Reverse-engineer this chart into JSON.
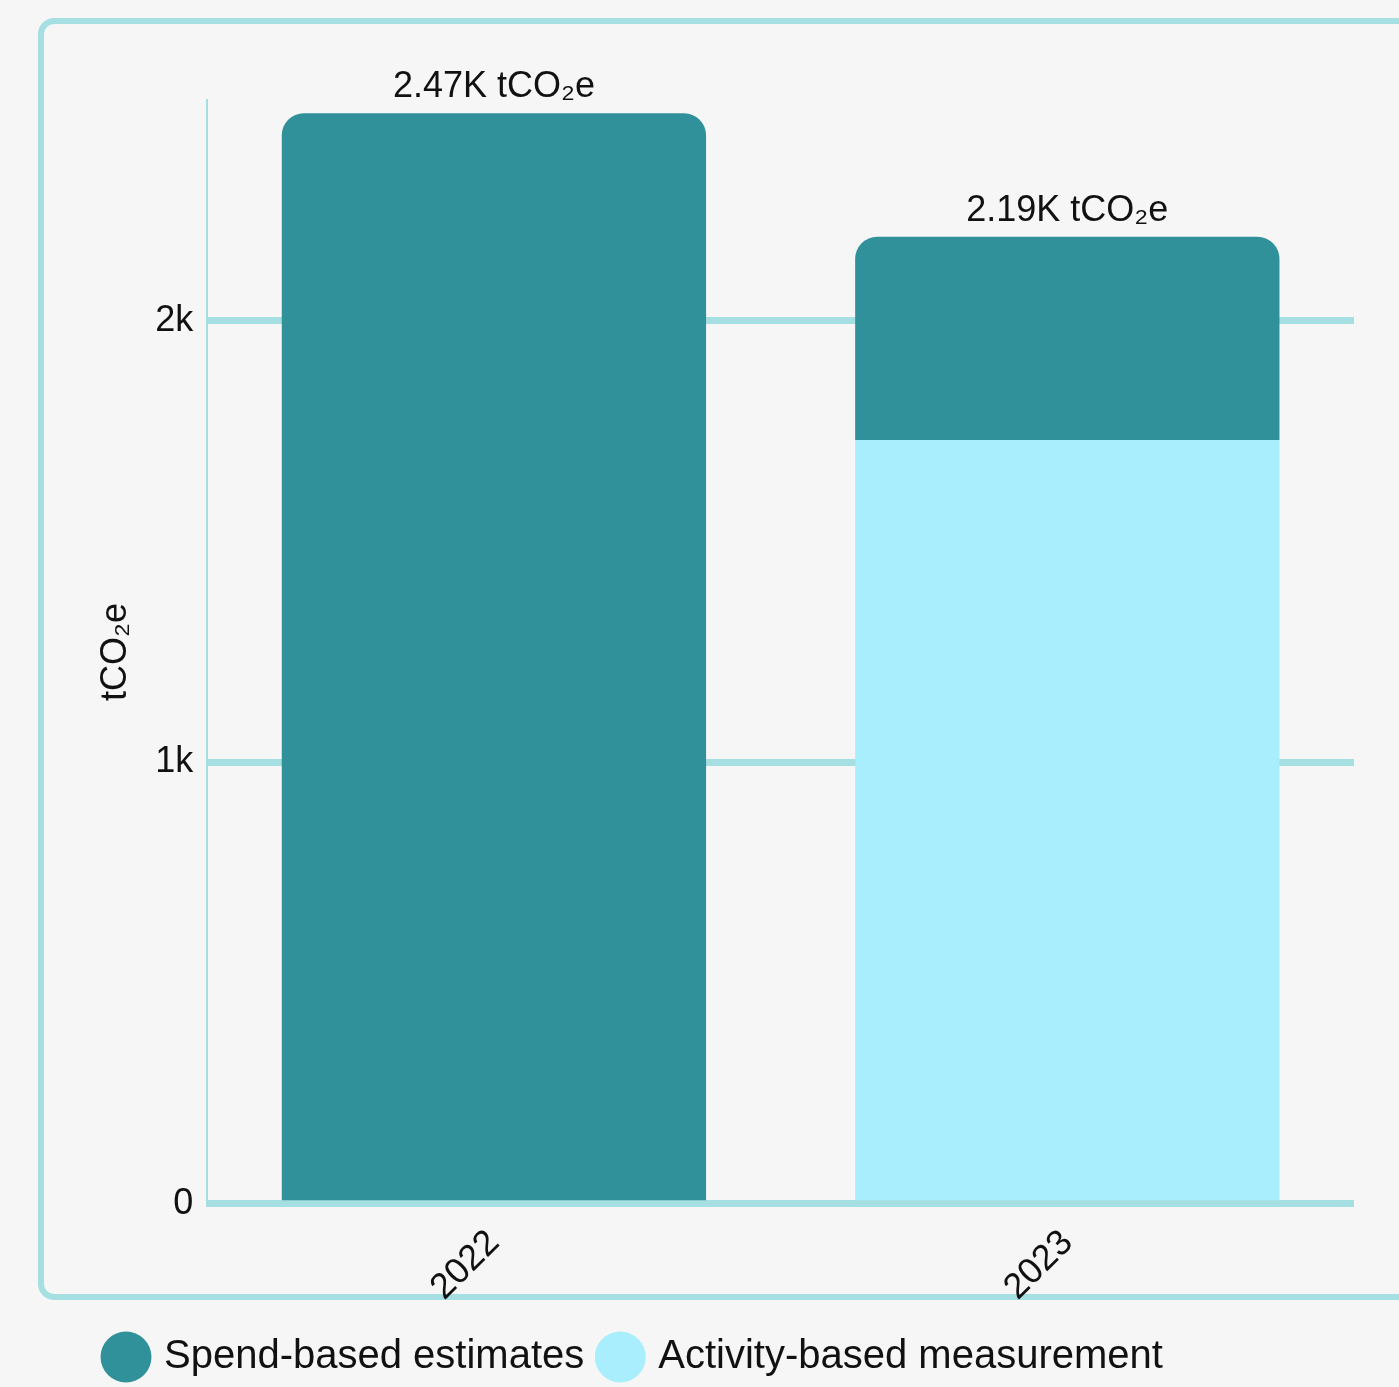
{
  "chart_data": {
    "type": "bar",
    "stacked": true,
    "ylabel": "tCO₂e",
    "categories": [
      "2022",
      "2023"
    ],
    "series": [
      {
        "name": "Activity-based measurement",
        "color": "#a8eefc",
        "values": [
          0,
          1730
        ]
      },
      {
        "name": "Spend-based estimates",
        "color": "#31919a",
        "values": [
          2470,
          460
        ]
      }
    ],
    "ylim": [
      0,
      2500
    ],
    "yticks": [
      {
        "value": 0,
        "label": "0"
      },
      {
        "value": 1000,
        "label": "1k"
      },
      {
        "value": 2000,
        "label": "2k"
      }
    ],
    "totals": [
      "2.47K tCO₂e",
      "2.19K tCO₂e"
    ],
    "grid": "y",
    "legend": "bottom"
  }
}
